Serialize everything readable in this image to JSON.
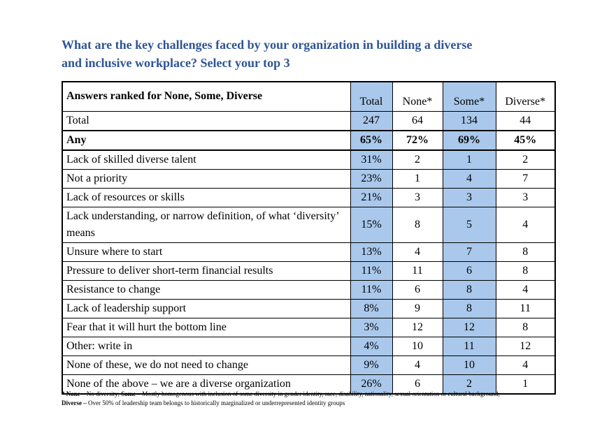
{
  "colors": {
    "title_blue": "#2F5496",
    "highlight_blue": "#A9C8EB",
    "border_black": "#000000",
    "background": "#FFFFFF"
  },
  "title": {
    "lines": [
      "What are the key challenges faced by your organization in building a diverse",
      "and inclusive workplace? Select your top 3"
    ]
  },
  "table": {
    "corner_label": "Answers ranked for None, Some, Diverse",
    "columns": [
      "Total",
      "None*",
      "Some*",
      "Diverse*"
    ],
    "highlighted_columns": [
      "Total",
      "Some*"
    ],
    "rows": [
      {
        "label": "Total",
        "bold": false,
        "values": [
          "247",
          "64",
          "134",
          "44"
        ]
      },
      {
        "label": "Any",
        "bold": true,
        "values": [
          "65%",
          "72%",
          "69%",
          "45%"
        ]
      },
      {
        "label": "Lack of skilled diverse talent",
        "bold": false,
        "values": [
          "31%",
          "2",
          "1",
          "2"
        ]
      },
      {
        "label": "Not a priority",
        "bold": false,
        "values": [
          "23%",
          "1",
          "4",
          "7"
        ]
      },
      {
        "label": "Lack of resources or skills",
        "bold": false,
        "values": [
          "21%",
          "3",
          "3",
          "3"
        ]
      },
      {
        "label": "Lack understanding, or narrow definition, of what ‘diversity’ means",
        "bold": false,
        "values": [
          "15%",
          "8",
          "5",
          "4"
        ]
      },
      {
        "label": "Unsure where to start",
        "bold": false,
        "values": [
          "13%",
          "4",
          "7",
          "8"
        ]
      },
      {
        "label": "Pressure to deliver short-term financial results",
        "bold": false,
        "values": [
          "11%",
          "11",
          "6",
          "8"
        ]
      },
      {
        "label": "Resistance to change",
        "bold": false,
        "values": [
          "11%",
          "6",
          "8",
          "4"
        ]
      },
      {
        "label": "Lack of leadership support",
        "bold": false,
        "values": [
          "8%",
          "9",
          "8",
          "11"
        ]
      },
      {
        "label": "Fear that it will hurt the bottom line",
        "bold": false,
        "values": [
          "3%",
          "12",
          "12",
          "8"
        ]
      },
      {
        "label": "Other: write in",
        "bold": false,
        "values": [
          "4%",
          "10",
          "11",
          "12"
        ]
      },
      {
        "label": "None of these, we do not need to change",
        "bold": false,
        "values": [
          "9%",
          "4",
          "10",
          "4"
        ]
      },
      {
        "label": "None of the above – we are a diverse organization",
        "bold": false,
        "values": [
          "26%",
          "6",
          "2",
          "1"
        ]
      }
    ]
  },
  "footnote": {
    "lines": [
      {
        "segments": [
          {
            "text": "* None – ",
            "bold": true
          },
          {
            "text": "No diversity; ",
            "bold": false
          },
          {
            "text": "Some – ",
            "bold": true
          },
          {
            "text": "Mostly homogenous with inclusion of some diversity in gender identity, race, disability, nationality, sexual orientation or cultural background;",
            "bold": false
          }
        ]
      },
      {
        "segments": [
          {
            "text": "Diverse – ",
            "bold": true
          },
          {
            "text": "Over 50% of leadership team belongs to historically marginalized or underrepresented identity groups",
            "bold": false
          }
        ]
      }
    ]
  }
}
